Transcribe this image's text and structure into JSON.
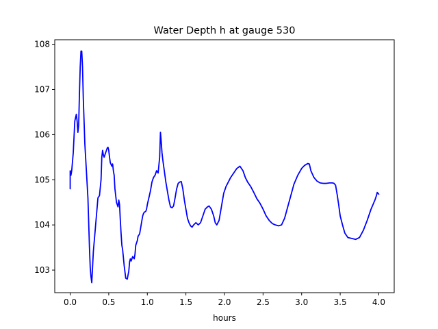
{
  "chart_data": {
    "type": "line",
    "title": "Water Depth h at gauge 530",
    "xlabel": "hours",
    "ylabel": "",
    "xlim": [
      -0.2,
      4.2
    ],
    "ylim": [
      102.5,
      108.1
    ],
    "xticks": [
      0.0,
      0.5,
      1.0,
      1.5,
      2.0,
      2.5,
      3.0,
      3.5,
      4.0
    ],
    "xtick_labels": [
      "0.0",
      "0.5",
      "1.0",
      "1.5",
      "2.0",
      "2.5",
      "3.0",
      "3.5",
      "4.0"
    ],
    "yticks": [
      103,
      104,
      105,
      106,
      107,
      108
    ],
    "ytick_labels": [
      "103",
      "104",
      "105",
      "106",
      "107",
      "108"
    ],
    "grid": false,
    "legend": "none",
    "series": [
      {
        "color": "#0000ff",
        "x": [
          0.0,
          0.0,
          0.01,
          0.02,
          0.04,
          0.06,
          0.08,
          0.09,
          0.1,
          0.11,
          0.12,
          0.13,
          0.14,
          0.15,
          0.16,
          0.17,
          0.19,
          0.21,
          0.23,
          0.25,
          0.26,
          0.27,
          0.28,
          0.3,
          0.32,
          0.34,
          0.36,
          0.38,
          0.4,
          0.41,
          0.42,
          0.43,
          0.44,
          0.46,
          0.48,
          0.49,
          0.5,
          0.51,
          0.52,
          0.54,
          0.55,
          0.56,
          0.57,
          0.58,
          0.6,
          0.62,
          0.63,
          0.64,
          0.65,
          0.66,
          0.67,
          0.68,
          0.7,
          0.72,
          0.74,
          0.76,
          0.77,
          0.78,
          0.79,
          0.81,
          0.83,
          0.84,
          0.85,
          0.86,
          0.87,
          0.88,
          0.9,
          0.92,
          0.94,
          0.95,
          0.96,
          0.98,
          0.99,
          1.0,
          1.02,
          1.04,
          1.06,
          1.08,
          1.1,
          1.12,
          1.14,
          1.16,
          1.17,
          1.18,
          1.19,
          1.2,
          1.22,
          1.24,
          1.26,
          1.28,
          1.3,
          1.32,
          1.34,
          1.36,
          1.38,
          1.4,
          1.42,
          1.44,
          1.46,
          1.48,
          1.5,
          1.52,
          1.54,
          1.56,
          1.58,
          1.6,
          1.63,
          1.66,
          1.69,
          1.72,
          1.75,
          1.78,
          1.8,
          1.83,
          1.86,
          1.88,
          1.9,
          1.93,
          1.96,
          1.99,
          2.02,
          2.05,
          2.08,
          2.12,
          2.16,
          2.2,
          2.24,
          2.27,
          2.3,
          2.34,
          2.38,
          2.42,
          2.46,
          2.5,
          2.54,
          2.58,
          2.62,
          2.66,
          2.7,
          2.74,
          2.78,
          2.82,
          2.86,
          2.9,
          2.95,
          3.0,
          3.04,
          3.08,
          3.1,
          3.12,
          3.16,
          3.2,
          3.24,
          3.28,
          3.32,
          3.36,
          3.4,
          3.42,
          3.44,
          3.46,
          3.48,
          3.5,
          3.53,
          3.56,
          3.6,
          3.65,
          3.7,
          3.75,
          3.8,
          3.85,
          3.9,
          3.95,
          3.97,
          3.98,
          4.0
        ],
        "y": [
          104.8,
          105.2,
          105.1,
          105.2,
          105.6,
          106.3,
          106.45,
          106.3,
          106.05,
          106.2,
          106.9,
          107.5,
          107.85,
          107.85,
          107.5,
          106.8,
          105.8,
          105.2,
          104.6,
          103.5,
          103.05,
          102.85,
          102.72,
          103.4,
          103.8,
          104.2,
          104.6,
          104.65,
          105.0,
          105.5,
          105.65,
          105.55,
          105.5,
          105.6,
          105.7,
          105.72,
          105.65,
          105.5,
          105.38,
          105.3,
          105.35,
          105.2,
          105.1,
          104.8,
          104.5,
          104.4,
          104.55,
          104.45,
          104.1,
          103.8,
          103.55,
          103.45,
          103.1,
          102.82,
          102.8,
          102.98,
          103.18,
          103.25,
          103.2,
          103.3,
          103.25,
          103.35,
          103.55,
          103.6,
          103.65,
          103.75,
          103.8,
          104.0,
          104.2,
          104.25,
          104.28,
          104.3,
          104.35,
          104.45,
          104.6,
          104.75,
          104.95,
          105.05,
          105.1,
          105.2,
          105.15,
          105.5,
          106.05,
          105.85,
          105.6,
          105.45,
          105.2,
          104.95,
          104.75,
          104.55,
          104.4,
          104.38,
          104.42,
          104.6,
          104.8,
          104.92,
          104.95,
          104.96,
          104.8,
          104.55,
          104.35,
          104.15,
          104.05,
          103.98,
          103.95,
          104.0,
          104.05,
          104.0,
          104.05,
          104.2,
          104.35,
          104.4,
          104.42,
          104.35,
          104.2,
          104.05,
          104.0,
          104.1,
          104.4,
          104.7,
          104.85,
          104.95,
          105.05,
          105.15,
          105.25,
          105.3,
          105.2,
          105.05,
          104.95,
          104.85,
          104.72,
          104.58,
          104.48,
          104.35,
          104.2,
          104.1,
          104.03,
          104.0,
          103.98,
          104.0,
          104.15,
          104.4,
          104.65,
          104.9,
          105.1,
          105.25,
          105.32,
          105.36,
          105.35,
          105.2,
          105.05,
          104.97,
          104.93,
          104.92,
          104.92,
          104.93,
          104.93,
          104.92,
          104.88,
          104.68,
          104.45,
          104.2,
          104.0,
          103.82,
          103.72,
          103.7,
          103.68,
          103.72,
          103.88,
          104.1,
          104.35,
          104.55,
          104.65,
          104.72,
          104.68
        ]
      }
    ]
  }
}
